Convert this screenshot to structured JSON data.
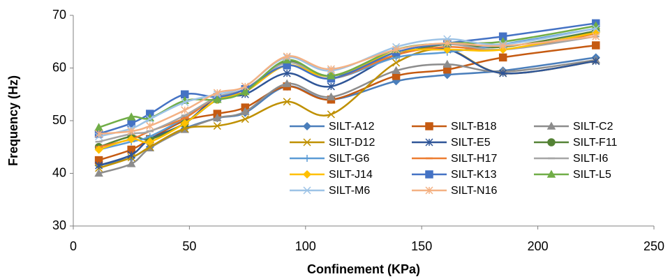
{
  "chart_data": {
    "type": "line",
    "x_label": "Confinement (KPa)",
    "y_label": "Frequency (Hz)",
    "xlim": [
      0,
      250
    ],
    "xticks": [
      0,
      50,
      100,
      150,
      200,
      250
    ],
    "ylim": [
      30,
      70
    ],
    "yticks": [
      30,
      40,
      50,
      60,
      70
    ],
    "legend": "center",
    "smooth": true,
    "x": [
      11,
      25,
      33,
      48,
      62,
      74,
      92,
      111,
      139,
      161,
      185,
      225
    ],
    "series": [
      {
        "name": "SILT-A12",
        "color": "#4a7ebb",
        "marker": "diamond",
        "values": [
          41.5,
          43,
          45,
          48.5,
          50.5,
          51.5,
          56.5,
          54,
          57.5,
          58.7,
          59.5,
          62
        ]
      },
      {
        "name": "SILT-B18",
        "color": "#c55a11",
        "marker": "square",
        "values": [
          42.5,
          44.5,
          46.5,
          50,
          51.3,
          52.5,
          56.5,
          54,
          58.5,
          59.7,
          62,
          64.3
        ]
      },
      {
        "name": "SILT-C2",
        "color": "#8c8c8c",
        "marker": "triangle",
        "values": [
          40,
          41.8,
          44.8,
          48.3,
          50.5,
          51.7,
          57,
          54.5,
          59.5,
          60.7,
          59.3,
          61.5
        ]
      },
      {
        "name": "SILT-D12",
        "color": "#bf9000",
        "marker": "x",
        "values": [
          41,
          43,
          45,
          48.5,
          49,
          50.3,
          53.6,
          51.2,
          61,
          63.5,
          59,
          61.3
        ]
      },
      {
        "name": "SILT-E5",
        "color": "#2f5597",
        "marker": "star",
        "values": [
          41.5,
          43.5,
          46.5,
          49.5,
          54.5,
          55,
          59,
          56.5,
          62.5,
          63.5,
          59,
          61.3
        ]
      },
      {
        "name": "SILT-F11",
        "color": "#548235",
        "marker": "circle",
        "values": [
          45,
          47,
          46.5,
          49.5,
          54,
          55.5,
          61.3,
          58.5,
          62.5,
          64.5,
          64,
          67
        ]
      },
      {
        "name": "SILT-G6",
        "color": "#5b9bd5",
        "marker": "plus",
        "values": [
          44.5,
          46,
          47,
          50.5,
          54.5,
          55.5,
          60.5,
          58,
          62,
          63,
          64.5,
          67.5
        ]
      },
      {
        "name": "SILT-H17",
        "color": "#ed7d31",
        "marker": "dash",
        "values": [
          45,
          46.5,
          48,
          50.5,
          54.5,
          55.5,
          60.5,
          58,
          62.5,
          64,
          63.5,
          66.5
        ]
      },
      {
        "name": "SILT-I6",
        "color": "#a5a5a5",
        "marker": "dash",
        "values": [
          46,
          47.5,
          48,
          51,
          54.5,
          56,
          61,
          58.5,
          63,
          64.5,
          63.5,
          66
        ]
      },
      {
        "name": "SILT-J14",
        "color": "#ffc000",
        "marker": "diamond",
        "values": [
          44.5,
          46.5,
          46,
          49.5,
          54,
          55.5,
          60.5,
          58.5,
          63,
          63.5,
          63.5,
          66.7
        ]
      },
      {
        "name": "SILT-K13",
        "color": "#4472c4",
        "marker": "square",
        "values": [
          47.5,
          49.5,
          51.3,
          55,
          54.5,
          56,
          60.5,
          58,
          63,
          64.7,
          66,
          68.5
        ]
      },
      {
        "name": "SILT-L5",
        "color": "#70ad47",
        "marker": "triangle",
        "values": [
          48.7,
          50.7,
          50.5,
          53.8,
          54,
          55.5,
          61.5,
          58.5,
          63.5,
          64.7,
          65,
          68
        ]
      },
      {
        "name": "SILT-M6",
        "color": "#9dc3e6",
        "marker": "x",
        "values": [
          47,
          48.5,
          50.3,
          53.5,
          55,
          56.5,
          62,
          59.5,
          64,
          65.5,
          64.5,
          67.5
        ]
      },
      {
        "name": "SILT-N16",
        "color": "#f4b183",
        "marker": "star",
        "values": [
          47.5,
          48,
          49,
          52,
          55.3,
          56.5,
          62.2,
          59.8,
          63.5,
          64.7,
          64.2,
          66
        ]
      }
    ]
  }
}
